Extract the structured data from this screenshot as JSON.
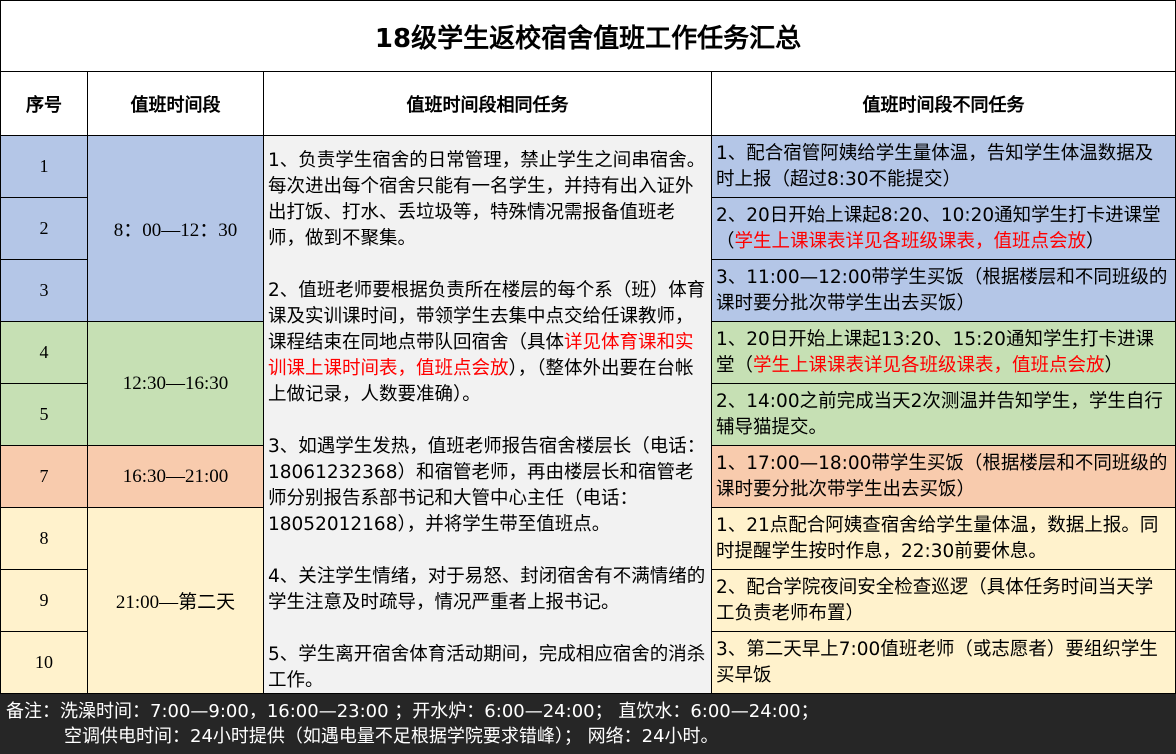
{
  "title": "18级学生返校宿舍值班工作任务汇总",
  "headers": {
    "index": "序号",
    "period": "值班时间段",
    "same": "值班时间段相同任务",
    "diff": "值班时间段不同任务"
  },
  "colors": {
    "morning": "#b4c6e7",
    "afternoon": "#c6e0b4",
    "evening": "#f8cbad",
    "night": "#fff2cc",
    "common": "#f2f2f2",
    "footer": "#262626",
    "highlight": "#ff0000"
  },
  "rows": [
    "1",
    "2",
    "3",
    "4",
    "5",
    "7",
    "8",
    "9",
    "10"
  ],
  "periods": [
    "8：00—12：30",
    "12:30—16:30",
    "16:30—21:00",
    "21:00—第二天"
  ],
  "same_tasks": [
    {
      "text": "1、负责学生宿舍的日常管理，禁止学生之间串宿舍。每次进出每个宿舍只能有一名学生，并持有出入证外出打饭、打水、丢垃圾等，特殊情况需报备值班老师，做到不聚集。"
    },
    {
      "pre": "2、值班老师要根据负责所在楼层的每个系（班）体育课及实训课时间，带领学生去集中点交给任课教师，课程结束在同地点带队回宿舍（具体",
      "red": "详见体育课和实训课上课时间表，值班点会放",
      "post": "），（整体外出要在台帐上做记录，人数要准确）。"
    },
    {
      "text": "3、如遇学生发热，值班老师报告宿舍楼层长（电话：18061232368）和宿管老师，再由楼层长和宿管老师分别报告系部书记和大管中心主任（电话：18052012168），并将学生带至值班点。"
    },
    {
      "text": "4、关注学生情绪，对于易怒、封闭宿舍有不满情绪的学生注意及时疏导，情况严重者上报书记。"
    },
    {
      "text": "5、学生离开宿舍体育活动期间，完成相应宿舍的消杀工作。"
    }
  ],
  "diff_tasks": [
    {
      "text": "1、配合宿管阿姨给学生量体温，告知学生体温数据及时上报（超过8:30不能提交）"
    },
    {
      "pre": "2、20日开始上课起8:20、10:20通知学生打卡进课堂（",
      "red": "学生上课课表详见各班级课表，值班点会放",
      "post": "）"
    },
    {
      "text": "3、11:00—12:00带学生买饭（根据楼层和不同班级的课时要分批次带学生出去买饭）"
    },
    {
      "pre": "1、20日开始上课起13:20、15:20通知学生打卡进课堂（",
      "red": "学生上课课表详见各班级课表，值班点会放",
      "post": "）"
    },
    {
      "text": "2、14:00之前完成当天2次测温并告知学生，学生自行辅导猫提交。"
    },
    {
      "text": "1、17:00—18:00带学生买饭（根据楼层和不同班级的课时要分批次带学生出去买饭）"
    },
    {
      "text": "1、21点配合阿姨查宿舍给学生量体温，数据上报。同时提醒学生按时作息，22:30前要休息。"
    },
    {
      "text": "2、配合学院夜间安全检查巡逻（具体任务时间当天学工负责老师布置）"
    },
    {
      "text": "3、第二天早上7:00值班老师（或志愿者）要组织学生买早饭"
    }
  ],
  "footer": {
    "line1": "备注：洗澡时间：7:00—9:00，16:00—23:00 ；开水炉：6:00—24:00； 直饮水：6:00—24:00；",
    "line2": "空调供电时间：24小时提供（如遇电量不足根据学院要求错峰）； 网络：24小时。"
  }
}
